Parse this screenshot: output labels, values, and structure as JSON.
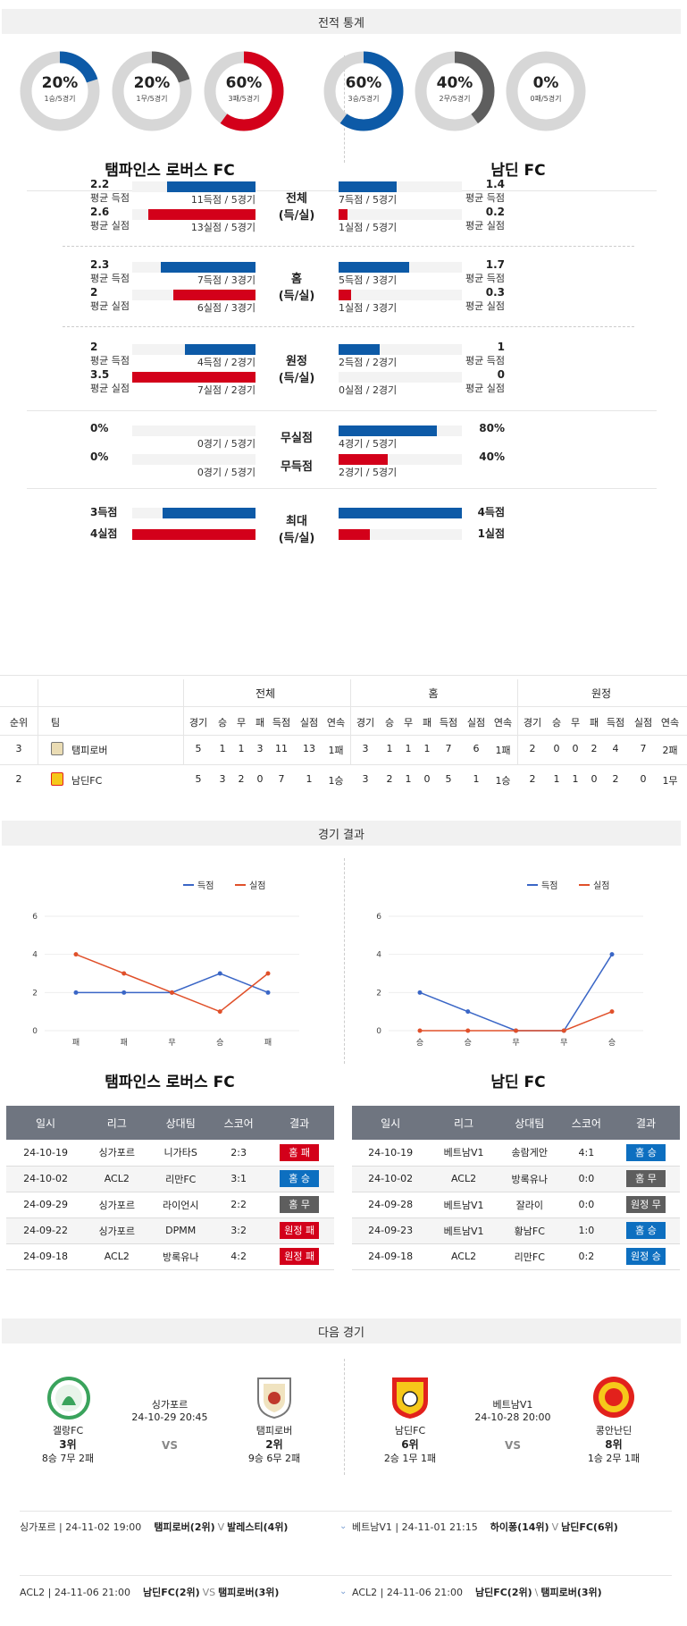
{
  "sections": {
    "stats": "전적 통계",
    "results": "경기 결과",
    "next": "다음 경기"
  },
  "donuts": [
    {
      "pct": "20%",
      "sub": "1승/5경기",
      "frac": 0.2,
      "color": "#0d5aa7"
    },
    {
      "pct": "20%",
      "sub": "1무/5경기",
      "frac": 0.2,
      "color": "#5e5e5e"
    },
    {
      "pct": "60%",
      "sub": "3패/5경기",
      "frac": 0.6,
      "color": "#d3001a"
    },
    {
      "pct": "60%",
      "sub": "3승/5경기",
      "frac": 0.6,
      "color": "#0d5aa7"
    },
    {
      "pct": "40%",
      "sub": "2무/5경기",
      "frac": 0.4,
      "color": "#5e5e5e"
    },
    {
      "pct": "0%",
      "sub": "0패/5경기",
      "frac": 0.0,
      "color": "#d3001a"
    }
  ],
  "teams": {
    "home": "탬파인스 로버스 FC",
    "away": "남딘 FC"
  },
  "stat_groups": [
    {
      "cat": [
        "전체",
        "(득/실)"
      ],
      "left": [
        {
          "val": "2.2",
          "lbl": "평균 득점",
          "sub": "11득점 / 5경기",
          "frac": 0.72,
          "c": "blue"
        },
        {
          "val": "2.6",
          "lbl": "평균 실점",
          "sub": "13실점 / 5경기",
          "frac": 0.87,
          "c": "red"
        }
      ],
      "right": [
        {
          "val": "1.4",
          "lbl": "평균 득점",
          "sub": "7득점 / 5경기",
          "frac": 0.47,
          "c": "blue"
        },
        {
          "val": "0.2",
          "lbl": "평균 실점",
          "sub": "1실점 / 5경기",
          "frac": 0.07,
          "c": "red"
        }
      ]
    },
    {
      "cat": [
        "홈",
        "(득/실)"
      ],
      "left": [
        {
          "val": "2.3",
          "lbl": "평균 득점",
          "sub": "7득점 / 3경기",
          "frac": 0.77,
          "c": "blue"
        },
        {
          "val": "2",
          "lbl": "평균 실점",
          "sub": "6실점 / 3경기",
          "frac": 0.67,
          "c": "red"
        }
      ],
      "right": [
        {
          "val": "1.7",
          "lbl": "평균 득점",
          "sub": "5득점 / 3경기",
          "frac": 0.57,
          "c": "blue"
        },
        {
          "val": "0.3",
          "lbl": "평균 실점",
          "sub": "1실점 / 3경기",
          "frac": 0.1,
          "c": "red"
        }
      ]
    },
    {
      "cat": [
        "원정",
        "(득/실)"
      ],
      "left": [
        {
          "val": "2",
          "lbl": "평균 득점",
          "sub": "4득점 / 2경기",
          "frac": 0.57,
          "c": "blue"
        },
        {
          "val": "3.5",
          "lbl": "평균 실점",
          "sub": "7실점 / 2경기",
          "frac": 1.0,
          "c": "red"
        }
      ],
      "right": [
        {
          "val": "1",
          "lbl": "평균 득점",
          "sub": "2득점 / 2경기",
          "frac": 0.33,
          "c": "blue"
        },
        {
          "val": "0",
          "lbl": "평균 실점",
          "sub": "0실점 / 2경기",
          "frac": 0.0,
          "c": "red"
        }
      ]
    }
  ],
  "clean": {
    "cats": [
      "무실점",
      "무득점"
    ],
    "left": [
      {
        "val": "0%",
        "sub": "0경기 / 5경기",
        "frac": 0.0,
        "c": "blue"
      },
      {
        "val": "0%",
        "sub": "0경기 / 5경기",
        "frac": 0.0,
        "c": "red"
      }
    ],
    "right": [
      {
        "val": "80%",
        "sub": "4경기 / 5경기",
        "frac": 0.8,
        "c": "blue"
      },
      {
        "val": "40%",
        "sub": "2경기 / 5경기",
        "frac": 0.4,
        "c": "red"
      }
    ]
  },
  "maxrow": {
    "cat": [
      "최대",
      "(득/실)"
    ],
    "left": [
      {
        "val": "3득점",
        "frac": 0.75,
        "c": "blue"
      },
      {
        "val": "4실점",
        "frac": 1.0,
        "c": "red"
      }
    ],
    "right": [
      {
        "val": "4득점",
        "frac": 1.0,
        "c": "blue"
      },
      {
        "val": "1실점",
        "frac": 0.25,
        "c": "red"
      }
    ]
  },
  "standings": {
    "groups": [
      "전체",
      "홈",
      "원정"
    ],
    "cols": [
      "순위",
      "팀",
      "경기",
      "승",
      "무",
      "패",
      "득점",
      "실점",
      "연속",
      "경기",
      "승",
      "무",
      "패",
      "득점",
      "실점",
      "연속",
      "경기",
      "승",
      "무",
      "패",
      "득점",
      "실점",
      "연속"
    ],
    "rows": [
      [
        "3",
        "탬피로버",
        "5",
        "1",
        "1",
        "3",
        "11",
        "13",
        "1패",
        "3",
        "1",
        "1",
        "1",
        "7",
        "6",
        "1패",
        "2",
        "0",
        "0",
        "2",
        "4",
        "7",
        "2패"
      ],
      [
        "2",
        "남딘FC",
        "5",
        "3",
        "2",
        "0",
        "7",
        "1",
        "1승",
        "3",
        "2",
        "1",
        "0",
        "5",
        "1",
        "1승",
        "2",
        "1",
        "1",
        "0",
        "2",
        "0",
        "1무"
      ]
    ]
  },
  "legend": {
    "scored": "득점",
    "conceded": "실점"
  },
  "chart_data": [
    {
      "type": "line",
      "x": [
        "패",
        "패",
        "무",
        "승",
        "패"
      ],
      "ylim": [
        0,
        6
      ],
      "yticks": [
        0,
        2,
        4,
        6
      ],
      "series": [
        {
          "name": "득점",
          "values": [
            2,
            2,
            2,
            3,
            2
          ],
          "color": "#3a66c6"
        },
        {
          "name": "실점",
          "values": [
            4,
            3,
            2,
            1,
            3
          ],
          "color": "#e0502a"
        }
      ]
    },
    {
      "type": "line",
      "x": [
        "승",
        "승",
        "무",
        "무",
        "승"
      ],
      "ylim": [
        0,
        6
      ],
      "yticks": [
        0,
        2,
        4,
        6
      ],
      "series": [
        {
          "name": "득점",
          "values": [
            2,
            1,
            0,
            0,
            4
          ],
          "color": "#3a66c6"
        },
        {
          "name": "실점",
          "values": [
            0,
            0,
            0,
            0,
            1
          ],
          "color": "#e0502a"
        }
      ]
    }
  ],
  "results_headers": [
    "일시",
    "리그",
    "상대팀",
    "스코어",
    "결과"
  ],
  "results": {
    "home": [
      [
        "24-10-19",
        "싱가포르",
        "니가타S",
        "2:3",
        "홈 패",
        "b-red"
      ],
      [
        "24-10-02",
        "ACL2",
        "리만FC",
        "3:1",
        "홈 승",
        "b-blue"
      ],
      [
        "24-09-29",
        "싱가포르",
        "라이언시",
        "2:2",
        "홈 무",
        "b-gray"
      ],
      [
        "24-09-22",
        "싱가포르",
        "DPMM",
        "3:2",
        "원정 패",
        "b-red"
      ],
      [
        "24-09-18",
        "ACL2",
        "방록유나",
        "4:2",
        "원정 패",
        "b-red"
      ]
    ],
    "away": [
      [
        "24-10-19",
        "베트남V1",
        "송람게안",
        "4:1",
        "홈 승",
        "b-blue"
      ],
      [
        "24-10-02",
        "ACL2",
        "방록유나",
        "0:0",
        "홈 무",
        "b-gray"
      ],
      [
        "24-09-28",
        "베트남V1",
        "잘라이",
        "0:0",
        "원정 무",
        "b-gray"
      ],
      [
        "24-09-23",
        "베트남V1",
        "황남FC",
        "1:0",
        "홈 승",
        "b-blue"
      ],
      [
        "24-09-18",
        "ACL2",
        "리만FC",
        "0:2",
        "원정 승",
        "b-blue"
      ]
    ]
  },
  "next": {
    "m1": {
      "league": "싱가포르",
      "date": "24-10-29 20:45",
      "vs": "VS",
      "t1": {
        "name": "겔랑FC",
        "rank": "3위",
        "rec": "8승 7무 2패"
      },
      "t2": {
        "name": "탬피로버",
        "rank": "2위",
        "rec": "9승 6무 2패"
      }
    },
    "m2": {
      "league": "베트남V1",
      "date": "24-10-28 20:00",
      "vs": "VS",
      "t1": {
        "name": "남딘FC",
        "rank": "6위",
        "rec": "2승 1무 1패"
      },
      "t2": {
        "name": "콩안난딘",
        "rank": "8위",
        "rec": "1승 2무 1패"
      }
    }
  },
  "upcoming": [
    {
      "l": "싱가포르 | 24-11-02 19:00",
      "a": "탬피로버(2위)",
      "vs": "V",
      "b": "발레스티(4위)"
    },
    {
      "l": "베트남V1 | 24-11-01 21:15",
      "a": "하이퐁(14위)",
      "vs": "V",
      "b": "남딘FC(6위)"
    },
    {
      "l": "ACL2 | 24-11-06 21:00",
      "a": "남딘FC(2위)",
      "vs": "VS",
      "b": "탬피로버(3위)"
    },
    {
      "l": "ACL2 | 24-11-06 21:00",
      "a": "남딘FC(2위)",
      "vs": "\\",
      "b": "탬피로버(3위)"
    }
  ]
}
